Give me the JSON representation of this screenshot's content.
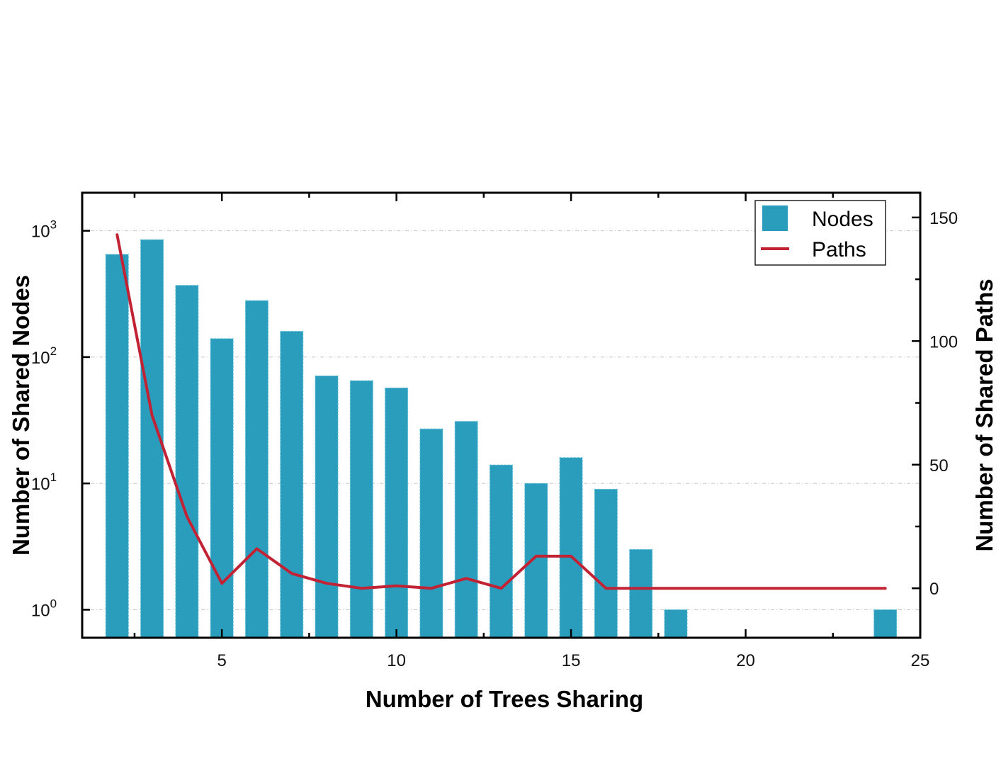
{
  "chart_data": {
    "type": "bar",
    "xlabel": "Number of Trees Sharing",
    "ylabel": "Number of Shared Nodes",
    "y2label": "Number of Shared Paths",
    "xlim": [
      1,
      25
    ],
    "ylim": [
      0.6,
      2000
    ],
    "yscale": "log",
    "y2lim": [
      -20,
      160
    ],
    "x_ticks": [
      5,
      10,
      15,
      20,
      25
    ],
    "y_ticks": [
      {
        "value": 1,
        "base": "10",
        "exp": "0"
      },
      {
        "value": 10,
        "base": "10",
        "exp": "1"
      },
      {
        "value": 100,
        "base": "10",
        "exp": "2"
      },
      {
        "value": 1000,
        "base": "10",
        "exp": "3"
      }
    ],
    "y2_ticks": [
      0,
      50,
      100,
      150
    ],
    "grid": true,
    "legend_position": "top-right",
    "colors": {
      "bars": "#2a9dbd",
      "line": "#c12334"
    },
    "series": [
      {
        "name": "Nodes",
        "type": "bar",
        "axis": "left",
        "x": [
          2,
          3,
          4,
          5,
          6,
          7,
          8,
          9,
          10,
          11,
          12,
          13,
          14,
          15,
          16,
          17,
          18,
          24
        ],
        "values": [
          650,
          850,
          370,
          140,
          280,
          160,
          71,
          65,
          57,
          27,
          31,
          14,
          10,
          16,
          9,
          3,
          1,
          1
        ]
      },
      {
        "name": "Paths",
        "type": "line",
        "axis": "right",
        "x": [
          2,
          3,
          4,
          5,
          6,
          7,
          8,
          9,
          10,
          11,
          12,
          13,
          14,
          15,
          16,
          17,
          18,
          19,
          20,
          21,
          22,
          23,
          24
        ],
        "values": [
          143,
          70,
          29,
          2,
          16,
          6,
          2,
          0,
          1,
          0,
          4,
          0,
          13,
          13,
          0,
          0,
          0,
          0,
          0,
          0,
          0,
          0,
          0
        ]
      }
    ]
  }
}
